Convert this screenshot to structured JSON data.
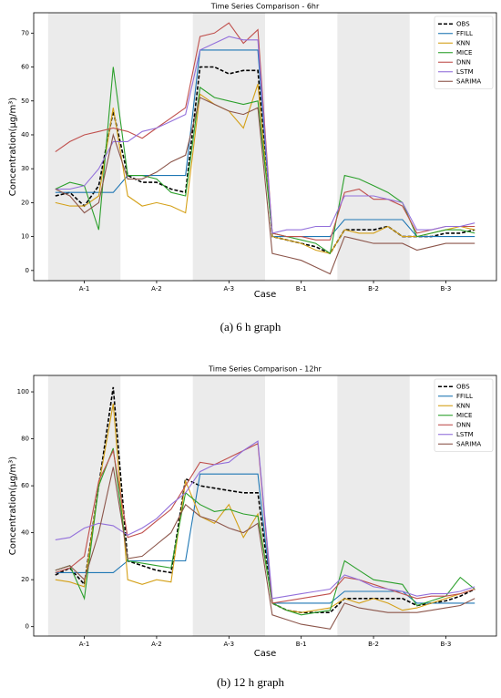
{
  "chart_data": [
    {
      "type": "line",
      "title": "Time Series Comparison - 6hr",
      "xlabel": "Case",
      "ylabel": "Concentration(μg/m³)",
      "caption": "(a) 6 h graph",
      "categories": [
        null,
        null,
        "A-1",
        null,
        null,
        null,
        null,
        "A-2",
        null,
        null,
        null,
        null,
        "A-3",
        null,
        null,
        null,
        null,
        "B-1",
        null,
        null,
        null,
        null,
        "B-2",
        null,
        null,
        null,
        null,
        "B-3",
        null,
        null
      ],
      "ylim": [
        -3,
        76
      ],
      "yticks": [
        0,
        10,
        20,
        30,
        40,
        50,
        60,
        70
      ],
      "legend": "upper right",
      "series": [
        {
          "name": "OBS",
          "color": "#000000",
          "dashed": true,
          "values": [
            22,
            23,
            19,
            25,
            47,
            28,
            26,
            26,
            24,
            23,
            60,
            60,
            58,
            59,
            59,
            10,
            9,
            8,
            7,
            5,
            12,
            12,
            12,
            13,
            10,
            10,
            10,
            11,
            11,
            12
          ]
        },
        {
          "name": "FFILL",
          "color": "#1f77b4",
          "values": [
            23,
            23,
            23,
            23,
            23,
            28,
            28,
            28,
            28,
            28,
            65,
            65,
            65,
            65,
            65,
            10,
            10,
            10,
            10,
            10,
            15,
            15,
            15,
            15,
            15,
            10,
            10,
            10,
            10,
            10
          ]
        },
        {
          "name": "KNN",
          "color": "#d4a017",
          "values": [
            20,
            19,
            19,
            22,
            48,
            22,
            19,
            20,
            19,
            17,
            52,
            49,
            47,
            42,
            55,
            10,
            9,
            8,
            6,
            5,
            12,
            11,
            11,
            13,
            10,
            10,
            11,
            12,
            13,
            12
          ]
        },
        {
          "name": "MICE",
          "color": "#2ca02c",
          "values": [
            24,
            26,
            25,
            12,
            60,
            28,
            28,
            27,
            23,
            22,
            54,
            51,
            50,
            49,
            50,
            11,
            10,
            9,
            8,
            5,
            28,
            27,
            25,
            23,
            20,
            10,
            11,
            12,
            12,
            11
          ]
        },
        {
          "name": "DNN",
          "color": "#c0504d",
          "values": [
            35,
            38,
            40,
            41,
            42,
            41,
            39,
            42,
            45,
            48,
            69,
            70,
            73,
            67,
            71,
            11,
            10,
            10,
            9,
            9,
            23,
            24,
            21,
            21,
            19,
            11,
            12,
            13,
            13,
            13
          ]
        },
        {
          "name": "LSTM",
          "color": "#9370db",
          "values": [
            24,
            24,
            25,
            30,
            38,
            38,
            41,
            42,
            44,
            46,
            65,
            67,
            69,
            68,
            68,
            11,
            12,
            12,
            13,
            13,
            22,
            22,
            22,
            21,
            20,
            12,
            12,
            13,
            13,
            14
          ]
        },
        {
          "name": "SARIMA",
          "color": "#8c564b",
          "values": [
            24,
            22,
            17,
            20,
            40,
            27,
            27,
            29,
            32,
            34,
            51,
            49,
            47,
            46,
            48,
            5,
            4,
            3,
            1,
            -1,
            10,
            9,
            8,
            8,
            8,
            6,
            7,
            8,
            8,
            8
          ]
        }
      ]
    },
    {
      "type": "line",
      "title": "Time Series Comparison - 12hr",
      "xlabel": "Case",
      "ylabel": "Concentration(μg/m³)",
      "caption": "(b) 12 h graph",
      "categories": [
        null,
        null,
        "A-1",
        null,
        null,
        null,
        null,
        "A-2",
        null,
        null,
        null,
        null,
        "A-3",
        null,
        null,
        null,
        null,
        "B-1",
        null,
        null,
        null,
        null,
        "B-2",
        null,
        null,
        null,
        null,
        "B-3",
        null,
        null
      ],
      "ylim": [
        -4,
        107
      ],
      "yticks": [
        0,
        20,
        40,
        60,
        80,
        100
      ],
      "legend": "upper right",
      "series": [
        {
          "name": "OBS",
          "color": "#000000",
          "dashed": true,
          "values": [
            22,
            25,
            18,
            60,
            102,
            28,
            26,
            24,
            23,
            63,
            60,
            59,
            58,
            57,
            57,
            10,
            7,
            6,
            6,
            6,
            12,
            12,
            12,
            12,
            12,
            9,
            10,
            11,
            13,
            16
          ]
        },
        {
          "name": "FFILL",
          "color": "#1f77b4",
          "values": [
            23,
            23,
            23,
            23,
            23,
            28,
            28,
            28,
            28,
            28,
            65,
            65,
            65,
            65,
            65,
            10,
            10,
            10,
            10,
            10,
            15,
            15,
            15,
            15,
            15,
            10,
            10,
            10,
            10,
            10
          ]
        },
        {
          "name": "KNN",
          "color": "#d4a017",
          "values": [
            20,
            19,
            17,
            60,
            95,
            20,
            18,
            20,
            19,
            62,
            47,
            44,
            52,
            38,
            48,
            10,
            7,
            6,
            7,
            8,
            12,
            10,
            12,
            10,
            7,
            8,
            10,
            12,
            14,
            16
          ]
        },
        {
          "name": "MICE",
          "color": "#2ca02c",
          "values": [
            24,
            26,
            12,
            60,
            76,
            28,
            27,
            26,
            25,
            57,
            52,
            49,
            50,
            48,
            47,
            10,
            7,
            5,
            6,
            7,
            28,
            24,
            20,
            19,
            18,
            9,
            11,
            13,
            21,
            16
          ]
        },
        {
          "name": "DNN",
          "color": "#c0504d",
          "values": [
            23,
            25,
            30,
            62,
            75,
            38,
            40,
            45,
            50,
            60,
            70,
            69,
            72,
            75,
            78,
            10,
            11,
            12,
            13,
            14,
            21,
            20,
            18,
            16,
            14,
            12,
            13,
            13,
            14,
            16
          ]
        },
        {
          "name": "LSTM",
          "color": "#9370db",
          "values": [
            37,
            38,
            42,
            44,
            43,
            39,
            42,
            46,
            52,
            57,
            66,
            69,
            70,
            75,
            79,
            12,
            13,
            14,
            15,
            16,
            22,
            20,
            17,
            16,
            15,
            13,
            14,
            14,
            15,
            17
          ]
        },
        {
          "name": "SARIMA",
          "color": "#8c564b",
          "values": [
            24,
            26,
            20,
            40,
            68,
            29,
            30,
            35,
            40,
            52,
            47,
            45,
            42,
            40,
            44,
            5,
            3,
            1,
            0,
            -1,
            10,
            8,
            7,
            6,
            6,
            6,
            7,
            8,
            9,
            12
          ]
        }
      ]
    }
  ]
}
